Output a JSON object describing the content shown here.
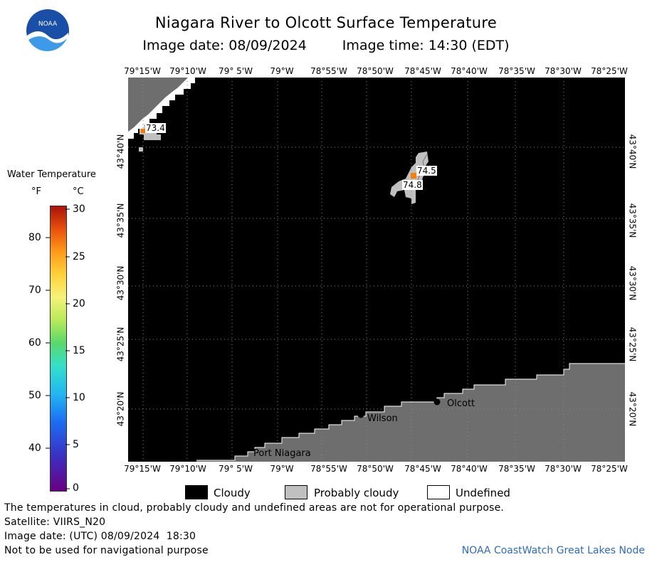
{
  "header": {
    "title": "Niagara River to Olcott Surface Temperature",
    "image_date": "Image date: 08/09/2024",
    "image_time": "Image time: 14:30 (EDT)"
  },
  "logo": {
    "text": "NOAA",
    "icon": "noaa-logo-icon"
  },
  "map": {
    "lon_ticks": [
      "79°15'W",
      "79°10'W",
      "79° 5'W",
      "79°W",
      "78°55'W",
      "78°50'W",
      "78°45'W",
      "78°40'W",
      "78°35'W",
      "78°30'W",
      "78°25'W"
    ],
    "lat_ticks": [
      "43°40'N",
      "43°35'N",
      "43°30'N",
      "43°25'N",
      "43°20'N"
    ],
    "places": [
      {
        "name": "Wilson"
      },
      {
        "name": "Olcott"
      },
      {
        "name": "Port Niagara"
      }
    ],
    "temperature_labels": [
      "73.4",
      "74.5",
      "74.8"
    ],
    "colors": {
      "cloudy": "#000000",
      "probably_cloudy": "#c0c0c0",
      "land": "#6e6e6e",
      "undefined": "#ffffff",
      "sst_warm": "#ff8000"
    }
  },
  "colorbar": {
    "title": "Water Temperature",
    "unit_f": "°F",
    "unit_c": "°C",
    "fahrenheit_ticks": [
      "80",
      "70",
      "60",
      "50",
      "40"
    ],
    "celsius_ticks": [
      "30",
      "25",
      "20",
      "15",
      "10",
      "5",
      "0"
    ]
  },
  "legend": {
    "cloudy": "Cloudy",
    "probably_cloudy": "Probably cloudy",
    "undefined": "Undefined"
  },
  "footer": {
    "disclaimer": "The temperatures in cloud, probably cloudy and undefined areas are not for operational purpose.",
    "satellite": "Satellite: VIIRS_N20",
    "utc_date": "Image date: (UTC) 08/09/2024  18:30",
    "nav_warning": "Not to be used for navigational purpose",
    "credit": "NOAA CoastWatch Great Lakes Node"
  }
}
